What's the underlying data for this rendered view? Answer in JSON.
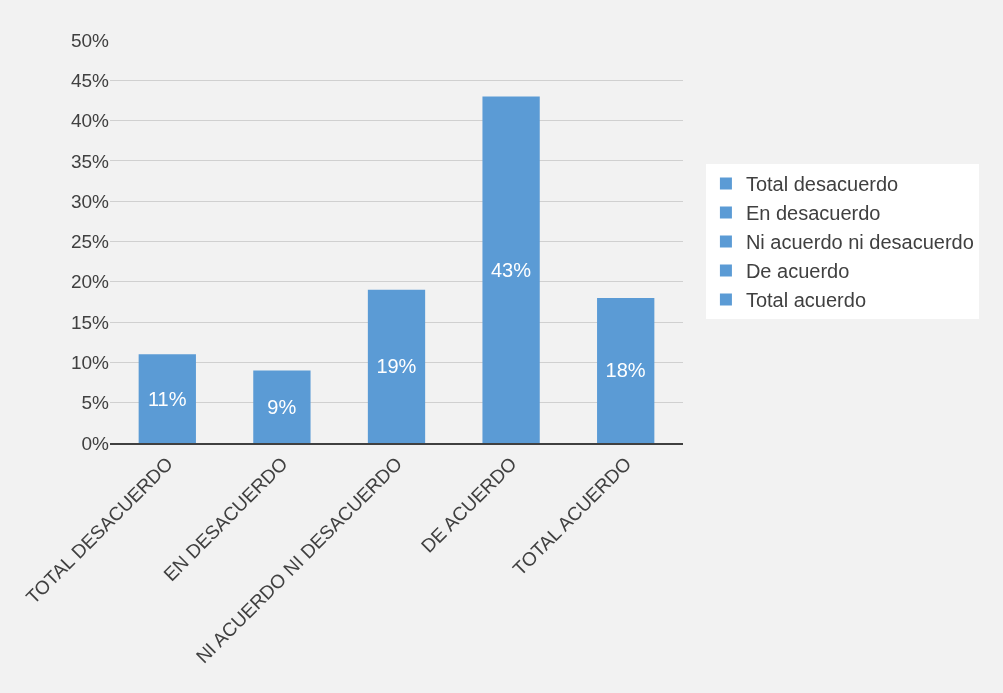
{
  "chart_data": {
    "type": "bar",
    "categories": [
      "TOTAL DESACUERDO",
      "EN DESACUERDO",
      "NI ACUERDO NI DESACUERDO",
      "DE ACUERDO",
      "TOTAL ACUERDO"
    ],
    "series": [
      {
        "name": "Total desacuerdo",
        "color": "#5b9bd5",
        "values": [
          11,
          null,
          null,
          null,
          null
        ],
        "value_labels": [
          "11%",
          null,
          null,
          null,
          null
        ]
      },
      {
        "name": "En desacuerdo",
        "color": "#5b9bd5",
        "values": [
          null,
          9,
          null,
          null,
          null
        ],
        "value_labels": [
          null,
          "9%",
          null,
          null,
          null
        ]
      },
      {
        "name": "Ni acuerdo ni desacuerdo",
        "color": "#5b9bd5",
        "values": [
          null,
          null,
          19,
          null,
          null
        ],
        "value_labels": [
          null,
          null,
          "19%",
          null,
          null
        ]
      },
      {
        "name": "De acuerdo",
        "color": "#5b9bd5",
        "values": [
          null,
          null,
          null,
          43,
          null
        ],
        "value_labels": [
          null,
          null,
          null,
          "43%",
          null
        ]
      },
      {
        "name": "Total acuerdo",
        "color": "#5b9bd5",
        "values": [
          null,
          null,
          null,
          null,
          18
        ],
        "value_labels": [
          null,
          null,
          null,
          null,
          "18%"
        ]
      }
    ],
    "ylim": [
      0,
      50
    ],
    "yticks": [
      {
        "value": 0,
        "label": "0%"
      },
      {
        "value": 5,
        "label": "5%"
      },
      {
        "value": 10,
        "label": "10%"
      },
      {
        "value": 15,
        "label": "15%"
      },
      {
        "value": 20,
        "label": "20%"
      },
      {
        "value": 25,
        "label": "25%"
      },
      {
        "value": 30,
        "label": "30%"
      },
      {
        "value": 35,
        "label": "35%"
      },
      {
        "value": 40,
        "label": "40%"
      },
      {
        "value": 45,
        "label": "45%"
      },
      {
        "value": 50,
        "label": "50%"
      }
    ],
    "grid": "y",
    "legend": "right"
  }
}
